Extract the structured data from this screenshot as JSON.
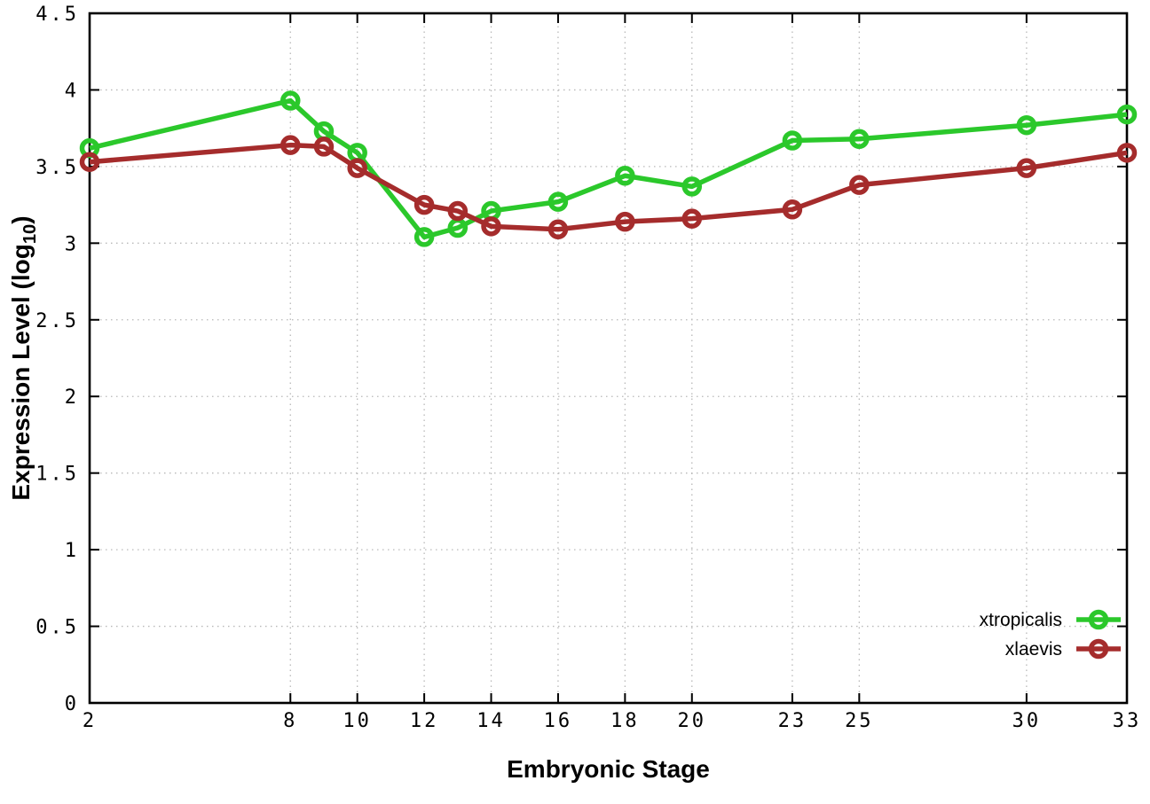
{
  "chart_data": {
    "type": "line",
    "title": "",
    "xlabel": "Embryonic Stage",
    "ylabel": "Expression Level (log10)",
    "xlim": [
      2,
      33
    ],
    "ylim": [
      0,
      4.5
    ],
    "grid": true,
    "legend_position": "bottom-right",
    "x_ticks": [
      2,
      8,
      10,
      12,
      14,
      16,
      18,
      20,
      23,
      25,
      30,
      33
    ],
    "x_tick_labels": [
      "2",
      "8",
      "10",
      "12",
      "14",
      "16",
      "18",
      "20",
      "23",
      "25",
      "30",
      "33"
    ],
    "y_ticks": [
      0,
      0.5,
      1,
      1.5,
      2,
      2.5,
      3,
      3.5,
      4,
      4.5
    ],
    "y_tick_labels": [
      "0",
      "0.5",
      "1",
      "1.5",
      "2",
      "2.5",
      "3",
      "3.5",
      "4",
      "4.5"
    ],
    "x": [
      2,
      8,
      9,
      10,
      12,
      13,
      14,
      16,
      18,
      20,
      23,
      25,
      30,
      33
    ],
    "series": [
      {
        "name": "xtropicalis",
        "color": "#2bc82b",
        "values": [
          3.62,
          3.93,
          3.73,
          3.59,
          3.04,
          3.1,
          3.21,
          3.27,
          3.44,
          3.37,
          3.67,
          3.68,
          3.77,
          3.84
        ]
      },
      {
        "name": "xlaevis",
        "color": "#a52c2c",
        "values": [
          3.53,
          3.64,
          3.63,
          3.49,
          3.25,
          3.21,
          3.11,
          3.09,
          3.14,
          3.16,
          3.22,
          3.38,
          3.49,
          3.59
        ]
      }
    ]
  },
  "labels": {
    "x": "Embryonic Stage",
    "y_pre": "Expression Level (log",
    "y_sub": "10",
    "y_post": ")"
  },
  "legend": {
    "items": [
      {
        "label": "xtropicalis",
        "color": "#2bc82b"
      },
      {
        "label": "xlaevis",
        "color": "#a52c2c"
      }
    ]
  }
}
